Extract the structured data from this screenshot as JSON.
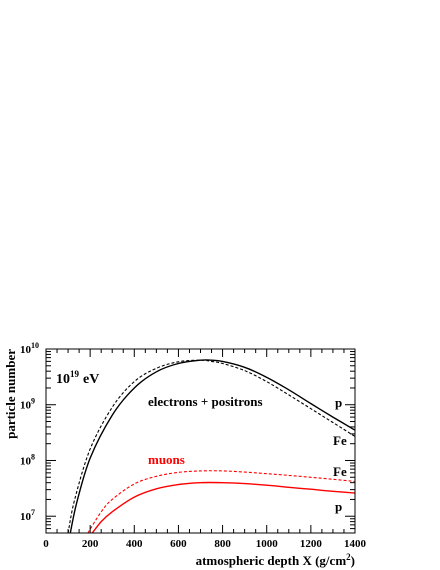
{
  "chart_data": {
    "type": "line",
    "title": "",
    "xlabel_main": "atmospheric depth X (g/cm",
    "xlabel_sup": "2",
    "xlabel_close": ")",
    "ylabel": "particle number",
    "xlim": [
      0,
      1400
    ],
    "ylim": [
      5000000,
      10000000000
    ],
    "yscale": "log",
    "grid": false,
    "xticks": [
      0,
      200,
      400,
      600,
      800,
      1000,
      1200,
      1400
    ],
    "xtick_labels": [
      "0",
      "200",
      "400",
      "600",
      "800",
      "1000",
      "1200",
      "1400"
    ],
    "yticks": [
      10000000,
      100000000,
      1000000000,
      10000000000
    ],
    "ytick_labels": [
      {
        "base": "10",
        "exp": "7"
      },
      {
        "base": "10",
        "exp": "8"
      },
      {
        "base": "10",
        "exp": "9"
      },
      {
        "base": "10",
        "exp": "10"
      }
    ],
    "energy_label": {
      "base": "10",
      "exp": "19",
      "unit": "eV"
    },
    "annotations": {
      "electrons": "electrons + positrons",
      "muons": "muons",
      "p_upper": "p",
      "fe_upper": "Fe",
      "fe_lower": "Fe",
      "p_lower": "p"
    },
    "colors": {
      "electrons": "#000000",
      "muons": "#ff0000"
    },
    "series": [
      {
        "group": "electrons",
        "primary": "p",
        "style": "solid",
        "color": "#000000",
        "x": [
          110,
          140,
          200,
          300,
          400,
          500,
          600,
          700,
          750,
          800,
          900,
          1000,
          1100,
          1200,
          1300,
          1400
        ],
        "y": [
          5000000,
          18000000,
          110000000,
          650000000,
          2000000000,
          3900000000,
          5500000000,
          6300000000,
          6300000000,
          6000000000,
          4700000000,
          3100000000,
          1850000000,
          1050000000,
          600000000,
          350000000
        ]
      },
      {
        "group": "electrons",
        "primary": "Fe",
        "style": "dashed",
        "color": "#000000",
        "x": [
          100,
          130,
          200,
          300,
          400,
          500,
          600,
          700,
          750,
          800,
          900,
          1000,
          1100,
          1200,
          1300,
          1400
        ],
        "y": [
          5000000,
          20000000,
          160000000,
          900000000,
          2600000000,
          4500000000,
          5900000000,
          6300000000,
          6000000000,
          5500000000,
          4100000000,
          2600000000,
          1500000000,
          850000000,
          480000000,
          270000000
        ]
      },
      {
        "group": "muons",
        "primary": "Fe",
        "style": "dashed",
        "color": "#ff0000",
        "x": [
          190,
          250,
          300,
          400,
          500,
          600,
          700,
          800,
          900,
          1000,
          1100,
          1200,
          1300,
          1400
        ],
        "y": [
          5000000,
          12000000,
          20000000,
          38000000,
          52000000,
          61000000,
          65000000,
          65000000,
          62000000,
          58000000,
          54000000,
          50000000,
          46000000,
          42000000
        ]
      },
      {
        "group": "muons",
        "primary": "p",
        "style": "solid",
        "color": "#ff0000",
        "x": [
          210,
          250,
          300,
          400,
          500,
          600,
          700,
          800,
          900,
          1000,
          1100,
          1200,
          1300,
          1400
        ],
        "y": [
          5000000,
          8000000,
          12000000,
          22000000,
          31000000,
          37000000,
          40000000,
          40000000,
          38500000,
          36000000,
          33000000,
          30500000,
          28000000,
          26000000
        ]
      }
    ]
  }
}
